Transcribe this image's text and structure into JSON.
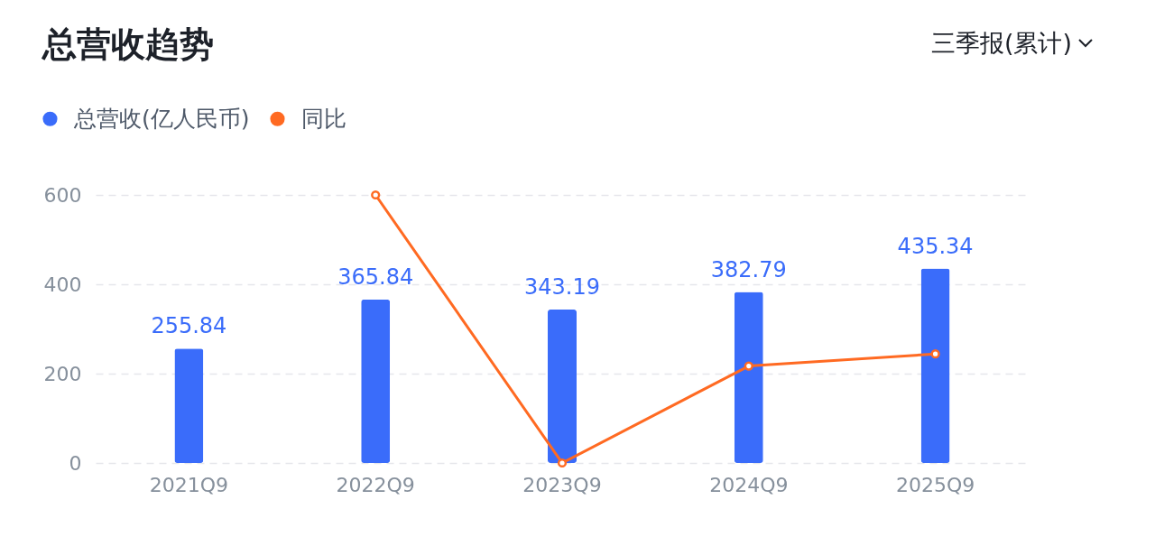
{
  "chart_data": {
    "type": "bar",
    "title": "总营收趋势",
    "annotations": [
      "三季报(累计)"
    ],
    "categories": [
      "2021Q9",
      "2022Q9",
      "2023Q9",
      "2024Q9",
      "2025Q9"
    ],
    "series": [
      {
        "name": "总营收(亿人民币)",
        "color": "#3a6cfa",
        "values": [
          255.84,
          365.84,
          343.19,
          382.79,
          435.34
        ],
        "value_labels": [
          "255.84",
          "365.84",
          "343.19",
          "382.79",
          "435.34"
        ]
      },
      {
        "name": "同比",
        "type": "line",
        "color": "#ff6a22",
        "values": [
          null,
          600,
          0,
          217,
          244
        ]
      }
    ],
    "ylim": [
      0,
      600
    ],
    "yticks": [
      0,
      200,
      400,
      600
    ],
    "grid": "y",
    "legend": "top left",
    "marker": "circle",
    "line_style": "solid"
  }
}
